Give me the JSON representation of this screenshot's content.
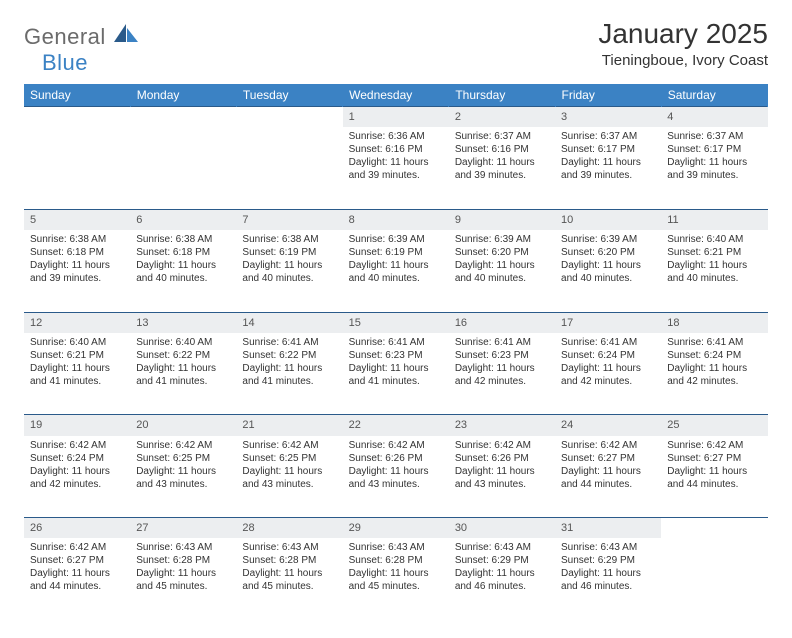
{
  "brand": {
    "general": "General",
    "blue": "Blue"
  },
  "title": {
    "month_year": "January 2025",
    "location": "Tieningboue, Ivory Coast"
  },
  "colors": {
    "header_bg": "#3b82c4",
    "header_text": "#ffffff",
    "daynum_bg": "#eceef0",
    "row_border": "#2a5a8a",
    "text": "#333333",
    "logo_gray": "#6b6b6b",
    "logo_blue": "#3b82c4"
  },
  "day_labels": [
    "Sunday",
    "Monday",
    "Tuesday",
    "Wednesday",
    "Thursday",
    "Friday",
    "Saturday"
  ],
  "weeks": [
    [
      null,
      null,
      null,
      {
        "n": "1",
        "sr": "6:36 AM",
        "ss": "6:16 PM",
        "dl": "11 hours and 39 minutes."
      },
      {
        "n": "2",
        "sr": "6:37 AM",
        "ss": "6:16 PM",
        "dl": "11 hours and 39 minutes."
      },
      {
        "n": "3",
        "sr": "6:37 AM",
        "ss": "6:17 PM",
        "dl": "11 hours and 39 minutes."
      },
      {
        "n": "4",
        "sr": "6:37 AM",
        "ss": "6:17 PM",
        "dl": "11 hours and 39 minutes."
      }
    ],
    [
      {
        "n": "5",
        "sr": "6:38 AM",
        "ss": "6:18 PM",
        "dl": "11 hours and 39 minutes."
      },
      {
        "n": "6",
        "sr": "6:38 AM",
        "ss": "6:18 PM",
        "dl": "11 hours and 40 minutes."
      },
      {
        "n": "7",
        "sr": "6:38 AM",
        "ss": "6:19 PM",
        "dl": "11 hours and 40 minutes."
      },
      {
        "n": "8",
        "sr": "6:39 AM",
        "ss": "6:19 PM",
        "dl": "11 hours and 40 minutes."
      },
      {
        "n": "9",
        "sr": "6:39 AM",
        "ss": "6:20 PM",
        "dl": "11 hours and 40 minutes."
      },
      {
        "n": "10",
        "sr": "6:39 AM",
        "ss": "6:20 PM",
        "dl": "11 hours and 40 minutes."
      },
      {
        "n": "11",
        "sr": "6:40 AM",
        "ss": "6:21 PM",
        "dl": "11 hours and 40 minutes."
      }
    ],
    [
      {
        "n": "12",
        "sr": "6:40 AM",
        "ss": "6:21 PM",
        "dl": "11 hours and 41 minutes."
      },
      {
        "n": "13",
        "sr": "6:40 AM",
        "ss": "6:22 PM",
        "dl": "11 hours and 41 minutes."
      },
      {
        "n": "14",
        "sr": "6:41 AM",
        "ss": "6:22 PM",
        "dl": "11 hours and 41 minutes."
      },
      {
        "n": "15",
        "sr": "6:41 AM",
        "ss": "6:23 PM",
        "dl": "11 hours and 41 minutes."
      },
      {
        "n": "16",
        "sr": "6:41 AM",
        "ss": "6:23 PM",
        "dl": "11 hours and 42 minutes."
      },
      {
        "n": "17",
        "sr": "6:41 AM",
        "ss": "6:24 PM",
        "dl": "11 hours and 42 minutes."
      },
      {
        "n": "18",
        "sr": "6:41 AM",
        "ss": "6:24 PM",
        "dl": "11 hours and 42 minutes."
      }
    ],
    [
      {
        "n": "19",
        "sr": "6:42 AM",
        "ss": "6:24 PM",
        "dl": "11 hours and 42 minutes."
      },
      {
        "n": "20",
        "sr": "6:42 AM",
        "ss": "6:25 PM",
        "dl": "11 hours and 43 minutes."
      },
      {
        "n": "21",
        "sr": "6:42 AM",
        "ss": "6:25 PM",
        "dl": "11 hours and 43 minutes."
      },
      {
        "n": "22",
        "sr": "6:42 AM",
        "ss": "6:26 PM",
        "dl": "11 hours and 43 minutes."
      },
      {
        "n": "23",
        "sr": "6:42 AM",
        "ss": "6:26 PM",
        "dl": "11 hours and 43 minutes."
      },
      {
        "n": "24",
        "sr": "6:42 AM",
        "ss": "6:27 PM",
        "dl": "11 hours and 44 minutes."
      },
      {
        "n": "25",
        "sr": "6:42 AM",
        "ss": "6:27 PM",
        "dl": "11 hours and 44 minutes."
      }
    ],
    [
      {
        "n": "26",
        "sr": "6:42 AM",
        "ss": "6:27 PM",
        "dl": "11 hours and 44 minutes."
      },
      {
        "n": "27",
        "sr": "6:43 AM",
        "ss": "6:28 PM",
        "dl": "11 hours and 45 minutes."
      },
      {
        "n": "28",
        "sr": "6:43 AM",
        "ss": "6:28 PM",
        "dl": "11 hours and 45 minutes."
      },
      {
        "n": "29",
        "sr": "6:43 AM",
        "ss": "6:28 PM",
        "dl": "11 hours and 45 minutes."
      },
      {
        "n": "30",
        "sr": "6:43 AM",
        "ss": "6:29 PM",
        "dl": "11 hours and 46 minutes."
      },
      {
        "n": "31",
        "sr": "6:43 AM",
        "ss": "6:29 PM",
        "dl": "11 hours and 46 minutes."
      },
      null
    ]
  ],
  "labels": {
    "sunrise": "Sunrise:",
    "sunset": "Sunset:",
    "daylight": "Daylight:"
  }
}
